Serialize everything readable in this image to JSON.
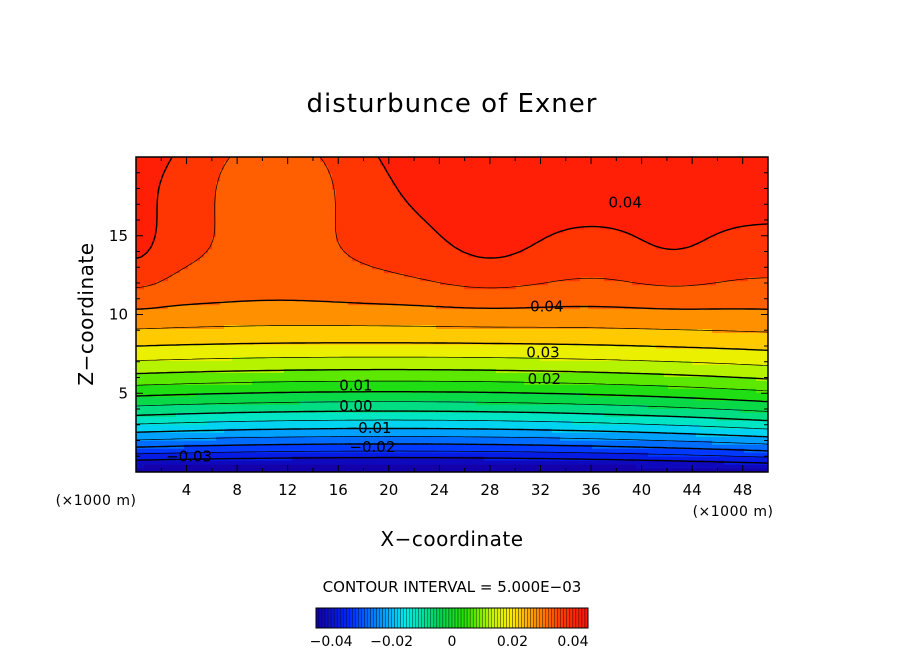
{
  "chart_data": {
    "type": "contour",
    "title": "disturbunce of Exner",
    "xlabel": "X−coordinate",
    "ylabel": "Z−coordinate",
    "x_unit": "(×1000 m)",
    "y_unit": "(×1000 m)",
    "xlim": [
      0,
      50
    ],
    "ylim": [
      0,
      20
    ],
    "xticks": [
      4,
      8,
      12,
      16,
      20,
      24,
      28,
      32,
      36,
      40,
      44,
      48
    ],
    "yticks": [
      5,
      10,
      15
    ],
    "xtick_labels": [
      "4",
      "8",
      "12",
      "16",
      "20",
      "24",
      "28",
      "32",
      "36",
      "40",
      "44",
      "48"
    ],
    "ytick_labels": [
      "5",
      "10",
      "15"
    ],
    "contour_interval_text": "CONTOUR INTERVAL = 5.000E−03",
    "contour_interval": 0.005,
    "value_range": [
      -0.045,
      0.045
    ],
    "negative_contours_dashed": true,
    "contour_labels": [
      {
        "text": "0.04",
        "x": 38.7,
        "z": 17.1
      },
      {
        "text": "0.04",
        "x": 32.5,
        "z": 10.5
      },
      {
        "text": "0.03",
        "x": 32.2,
        "z": 7.6
      },
      {
        "text": "0.02",
        "x": 32.3,
        "z": 5.9
      },
      {
        "text": "0.01",
        "x": 17.4,
        "z": 5.5
      },
      {
        "text": "0.00",
        "x": 17.4,
        "z": 4.2
      },
      {
        "text": "−0.01",
        "x": 18.4,
        "z": 2.8
      },
      {
        "text": "−0.02",
        "x": 18.7,
        "z": 1.6
      },
      {
        "text": "−0.03",
        "x": 4.2,
        "z": 1.0
      }
    ],
    "field_features": [
      {
        "kind": "maximum",
        "x": 28,
        "z": 13.5,
        "value": 0.047
      },
      {
        "kind": "maximum",
        "x": 42.5,
        "z": 13.5,
        "value": 0.046
      },
      {
        "kind": "maximum",
        "x": 0,
        "z": 14,
        "value": 0.041
      },
      {
        "kind": "minimum",
        "x": 9,
        "z": 0,
        "value": -0.045
      },
      {
        "kind": "saddle",
        "x": 11,
        "z": 14,
        "value": 0.036
      }
    ],
    "colorbar": {
      "ticks": [
        -0.04,
        -0.02,
        0,
        0.02,
        0.04
      ],
      "tick_labels": [
        "−0.04",
        "−0.02",
        "0",
        "0.02",
        "0.04"
      ]
    }
  }
}
